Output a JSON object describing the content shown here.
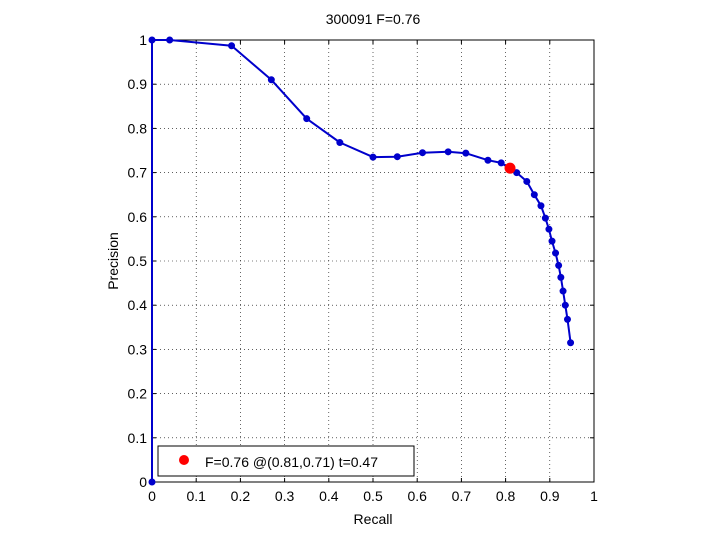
{
  "chart_data": {
    "type": "line",
    "title": "300091 F=0.76",
    "xlabel": "Recall",
    "ylabel": "Precision",
    "xlim": [
      0,
      1
    ],
    "ylim": [
      0,
      1
    ],
    "grid": true,
    "legend_position": "bottom-left",
    "x_ticks": [
      "0",
      "0.1",
      "0.2",
      "0.3",
      "0.4",
      "0.5",
      "0.6",
      "0.7",
      "0.8",
      "0.9",
      "1"
    ],
    "y_ticks": [
      "0",
      "0.1",
      "0.2",
      "0.3",
      "0.4",
      "0.5",
      "0.6",
      "0.7",
      "0.8",
      "0.9",
      "1"
    ],
    "series": [
      {
        "color": "#0000cc",
        "points": [
          [
            0.0,
            0.0
          ],
          [
            0.0,
            1.0
          ],
          [
            0.04,
            1.0
          ],
          [
            0.18,
            0.987
          ],
          [
            0.27,
            0.91
          ],
          [
            0.35,
            0.822
          ],
          [
            0.425,
            0.768
          ],
          [
            0.5,
            0.735
          ],
          [
            0.555,
            0.736
          ],
          [
            0.612,
            0.745
          ],
          [
            0.67,
            0.747
          ],
          [
            0.71,
            0.744
          ],
          [
            0.76,
            0.728
          ],
          [
            0.79,
            0.722
          ],
          [
            0.812,
            0.708
          ],
          [
            0.825,
            0.7
          ],
          [
            0.848,
            0.68
          ],
          [
            0.865,
            0.65
          ],
          [
            0.88,
            0.625
          ],
          [
            0.89,
            0.597
          ],
          [
            0.898,
            0.572
          ],
          [
            0.905,
            0.545
          ],
          [
            0.913,
            0.518
          ],
          [
            0.92,
            0.49
          ],
          [
            0.925,
            0.463
          ],
          [
            0.93,
            0.432
          ],
          [
            0.935,
            0.4
          ],
          [
            0.94,
            0.368
          ],
          [
            0.947,
            0.315
          ]
        ]
      }
    ],
    "highlight": {
      "x": 0.81,
      "y": 0.71,
      "color": "#ff0000"
    },
    "legend": [
      {
        "label": "F=0.76 @(0.81,0.71) t=0.47",
        "color": "#ff0000"
      }
    ]
  }
}
